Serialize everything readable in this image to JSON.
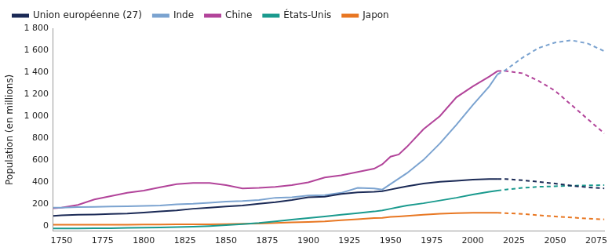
{
  "chart_data": {
    "type": "line",
    "y_label": "Population (en millions)",
    "x": [
      1745,
      1750,
      1760,
      1770,
      1780,
      1790,
      1800,
      1810,
      1820,
      1830,
      1840,
      1850,
      1860,
      1870,
      1880,
      1890,
      1900,
      1910,
      1920,
      1930,
      1940,
      1945,
      1950,
      1955,
      1960,
      1970,
      1980,
      1990,
      2000,
      2010,
      2015,
      2020,
      2030,
      2040,
      2050,
      2060,
      2070,
      2080
    ],
    "xlim": [
      1745,
      2080
    ],
    "xticks": [
      1750,
      1775,
      1800,
      1825,
      1850,
      1875,
      1900,
      1925,
      1950,
      1975,
      2000,
      2025,
      2050,
      2075
    ],
    "ylim": [
      -50,
      1800
    ],
    "yticks": [
      0,
      200,
      400,
      600,
      800,
      {
        "value": 1000,
        "label": "1 000"
      },
      {
        "value": 1200,
        "label": "1 200"
      },
      {
        "value": 1400,
        "label": "1 400"
      },
      {
        "value": 1600,
        "label": "1 600"
      },
      {
        "value": 1800,
        "label": "1 800"
      }
    ],
    "grid": false,
    "legend": "top",
    "series": [
      {
        "name": "Union européenne (27)",
        "color": "#1b2a56",
        "line_style": "solid",
        "values": [
          90,
          95,
          100,
          103,
          108,
          112,
          120,
          130,
          140,
          155,
          165,
          175,
          185,
          200,
          215,
          235,
          260,
          265,
          290,
          305,
          310,
          315,
          330,
          345,
          360,
          385,
          400,
          410,
          420,
          425,
          425,
          null,
          null,
          null,
          null,
          null,
          null,
          null
        ],
        "projection": {
          "line_style": "dashed",
          "values": [
            null,
            null,
            null,
            null,
            null,
            null,
            null,
            null,
            null,
            null,
            null,
            null,
            null,
            null,
            null,
            null,
            null,
            null,
            null,
            null,
            null,
            null,
            null,
            null,
            null,
            null,
            null,
            null,
            null,
            null,
            425,
            425,
            415,
            400,
            385,
            365,
            350,
            340
          ]
        }
      },
      {
        "name": "Inde",
        "color": "#7ba3d0",
        "line_style": "solid",
        "values": [
          165,
          165,
          170,
          172,
          175,
          178,
          180,
          185,
          195,
          200,
          210,
          220,
          225,
          235,
          255,
          260,
          275,
          280,
          300,
          345,
          340,
          330,
          380,
          430,
          480,
          600,
          750,
          920,
          1100,
          1270,
          1380,
          null,
          null,
          null,
          null,
          null,
          null,
          null
        ],
        "projection": {
          "line_style": "dashed",
          "values": [
            null,
            null,
            null,
            null,
            null,
            null,
            null,
            null,
            null,
            null,
            null,
            null,
            null,
            null,
            null,
            null,
            null,
            null,
            null,
            null,
            null,
            null,
            null,
            null,
            null,
            null,
            null,
            null,
            null,
            null,
            1380,
            1420,
            1530,
            1620,
            1670,
            1690,
            1660,
            1590
          ]
        }
      },
      {
        "name": "Chine",
        "color": "#b2449a",
        "line_style": "solid",
        "values": [
          160,
          165,
          190,
          240,
          270,
          300,
          320,
          350,
          380,
          390,
          390,
          370,
          340,
          345,
          355,
          370,
          395,
          440,
          460,
          490,
          520,
          560,
          630,
          650,
          720,
          880,
          1000,
          1170,
          1270,
          1360,
          1410,
          null,
          null,
          null,
          null,
          null,
          null,
          null
        ],
        "projection": {
          "line_style": "dashed",
          "values": [
            null,
            null,
            null,
            null,
            null,
            null,
            null,
            null,
            null,
            null,
            null,
            null,
            null,
            null,
            null,
            null,
            null,
            null,
            null,
            null,
            null,
            null,
            null,
            null,
            null,
            null,
            null,
            null,
            null,
            null,
            1410,
            1410,
            1390,
            1320,
            1230,
            1100,
            970,
            840
          ]
        }
      },
      {
        "name": "États-Unis",
        "color": "#1a9a8e",
        "line_style": "solid",
        "values": [
          -25,
          -25,
          -24,
          -23,
          -22,
          -20,
          -18,
          -15,
          -12,
          -8,
          -3,
          5,
          15,
          25,
          40,
          55,
          70,
          85,
          100,
          115,
          130,
          140,
          155,
          170,
          185,
          205,
          230,
          255,
          285,
          310,
          320,
          null,
          null,
          null,
          null,
          null,
          null,
          null
        ],
        "projection": {
          "line_style": "dashed",
          "values": [
            null,
            null,
            null,
            null,
            null,
            null,
            null,
            null,
            null,
            null,
            null,
            null,
            null,
            null,
            null,
            null,
            null,
            null,
            null,
            null,
            null,
            null,
            null,
            null,
            null,
            null,
            null,
            null,
            null,
            null,
            320,
            330,
            345,
            355,
            360,
            365,
            368,
            370
          ]
        }
      },
      {
        "name": "Japon",
        "color": "#e87722",
        "line_style": "solid",
        "values": [
          10,
          10,
          10,
          10,
          10,
          10,
          12,
          12,
          13,
          13,
          13,
          15,
          18,
          20,
          25,
          30,
          35,
          40,
          50,
          60,
          70,
          72,
          80,
          85,
          90,
          100,
          110,
          115,
          118,
          118,
          118,
          null,
          null,
          null,
          null,
          null,
          null,
          null
        ],
        "projection": {
          "line_style": "dashed",
          "values": [
            null,
            null,
            null,
            null,
            null,
            null,
            null,
            null,
            null,
            null,
            null,
            null,
            null,
            null,
            null,
            null,
            null,
            null,
            null,
            null,
            null,
            null,
            null,
            null,
            null,
            null,
            null,
            null,
            null,
            null,
            118,
            115,
            108,
            95,
            85,
            75,
            65,
            58
          ]
        }
      }
    ]
  }
}
